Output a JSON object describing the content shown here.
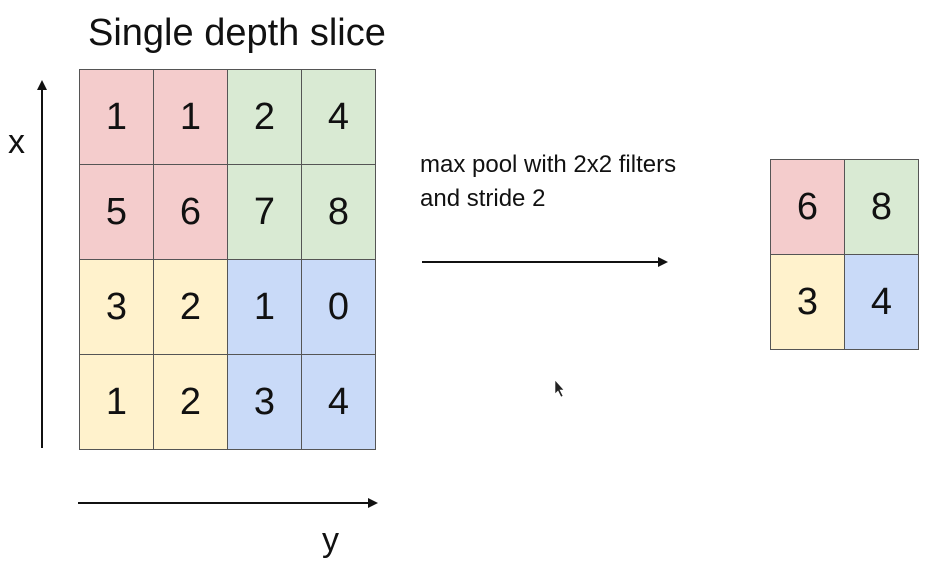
{
  "title": "Single depth slice",
  "axes": {
    "vertical_label": "x",
    "horizontal_label": "y"
  },
  "input_matrix": [
    [
      "1",
      "1",
      "2",
      "4"
    ],
    [
      "5",
      "6",
      "7",
      "8"
    ],
    [
      "3",
      "2",
      "1",
      "0"
    ],
    [
      "1",
      "2",
      "3",
      "4"
    ]
  ],
  "operation": {
    "line1": "max pool with 2x2 filters",
    "line2": "and stride 2"
  },
  "output_matrix": [
    [
      "6",
      "8"
    ],
    [
      "3",
      "4"
    ]
  ],
  "colors": {
    "top_left": "#f4cccc",
    "top_right": "#d9ead3",
    "bottom_left": "#fff2cc",
    "bottom_right": "#c9daf8"
  }
}
